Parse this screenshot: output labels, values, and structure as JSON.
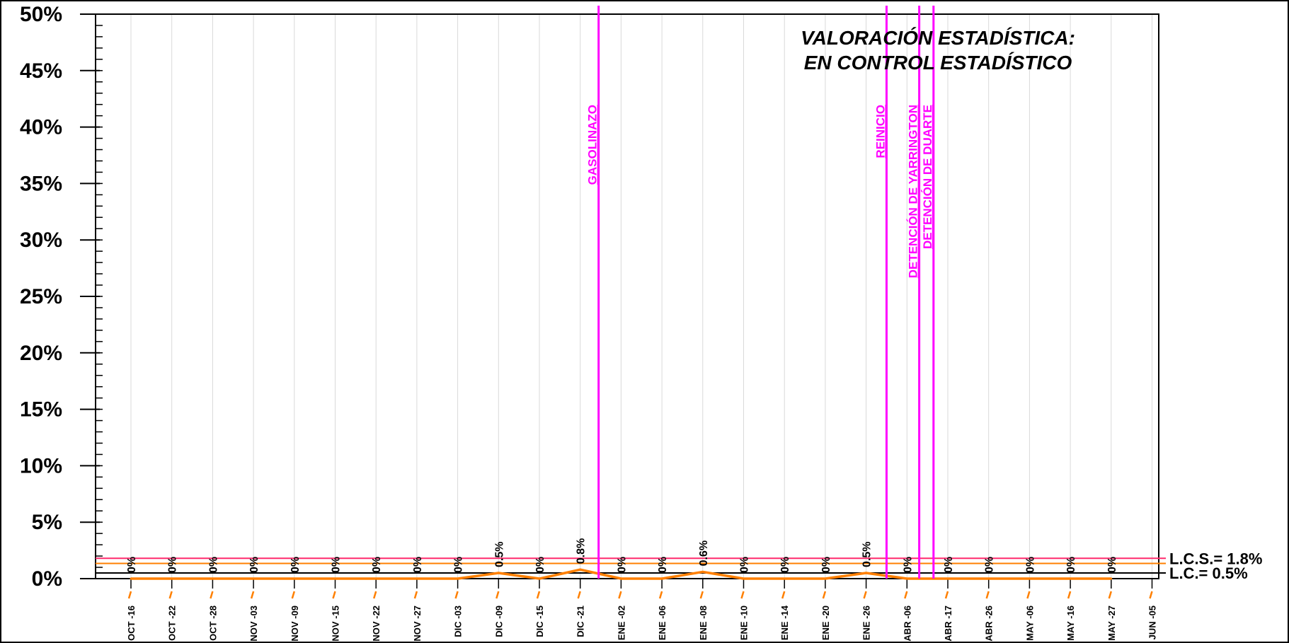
{
  "chart_data": {
    "type": "line",
    "title_lines": [
      "VALORACIÓN ESTADÍSTICA:",
      "EN CONTROL ESTADÍSTICO"
    ],
    "xlabel": "",
    "ylabel": "",
    "ylim": [
      0,
      50
    ],
    "y_ticks": [
      {
        "value": 0,
        "label": "0%"
      },
      {
        "value": 5,
        "label": "5%"
      },
      {
        "value": 10,
        "label": "10%"
      },
      {
        "value": 15,
        "label": "15%"
      },
      {
        "value": 20,
        "label": "20%"
      },
      {
        "value": 25,
        "label": "25%"
      },
      {
        "value": 30,
        "label": "30%"
      },
      {
        "value": 35,
        "label": "35%"
      },
      {
        "value": 40,
        "label": "40%"
      },
      {
        "value": 45,
        "label": "45%"
      },
      {
        "value": 50,
        "label": "50%"
      }
    ],
    "y_minor_step": 1,
    "categories": [
      "OCT -16",
      "OCT -22",
      "OCT -28",
      "NOV -03",
      "NOV -09",
      "NOV -15",
      "NOV -22",
      "NOV -27",
      "DIC -03",
      "DIC -09",
      "DIC -15",
      "DIC -21",
      "ENE -02",
      "ENE -06",
      "ENE -08",
      "ENE -10",
      "ENE -14",
      "ENE -20",
      "ENE -26",
      "ABR -06",
      "ABR -17",
      "ABR -26",
      "MAY -06",
      "MAY -16",
      "MAY -27",
      "JUN -05"
    ],
    "series": [
      {
        "values": [
          0,
          0,
          0,
          0,
          0,
          0,
          0,
          0,
          0,
          0.5,
          0,
          0.8,
          0,
          0,
          0.6,
          0,
          0,
          0,
          0.5,
          0,
          0,
          0,
          0,
          0,
          0,
          null
        ],
        "labels": [
          "0%",
          "0%",
          "0%",
          "0%",
          "0%",
          "0%",
          "0%",
          "0%",
          "0%",
          "0.5%",
          "0%",
          "0.8%",
          "0%",
          "0%",
          "0.6%",
          "0%",
          "0%",
          "0%",
          "0.5%",
          "0%",
          "0%",
          "0%",
          "0%",
          "0%",
          "0%",
          ""
        ],
        "color": "#ff8000"
      }
    ],
    "control_limits": [
      {
        "value": 1.8,
        "label": "L.C.S.= 1.8%",
        "color": "#ff2a6d"
      },
      {
        "value": 1.35,
        "label": "",
        "color": "#ff8000"
      },
      {
        "value": 0.5,
        "label": "L.C.= 0.5%",
        "color": "#000000"
      }
    ],
    "events": [
      {
        "label": "GASOLINAZO",
        "position": 11.45,
        "color": "#ff00ff"
      },
      {
        "label": "REINICIO",
        "position": 18.5,
        "color": "#ff00ff"
      },
      {
        "label": "DETENCIÓN DE YARRINGTON",
        "position": 19.3,
        "color": "#ff00ff"
      },
      {
        "label": "DETENCIÓN DE DUARTE",
        "position": 19.65,
        "color": "#ff00ff"
      }
    ],
    "grid": {
      "vertical": true,
      "horizontal": false
    },
    "legend": "none"
  }
}
